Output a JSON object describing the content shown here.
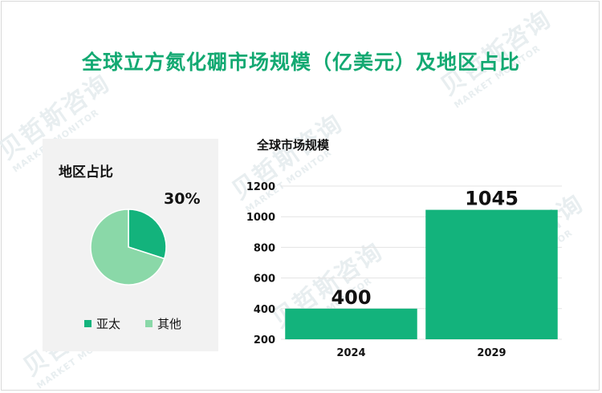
{
  "title": "全球立方氮化硼市场规模（亿美元）及地区占比",
  "watermark": {
    "cn": "贝哲斯咨询",
    "en": "MARKET MONITOR"
  },
  "colors": {
    "primary": "#13b37c",
    "secondary": "#8ad8a8",
    "title": "#13a972"
  },
  "chart_data": [
    {
      "type": "pie",
      "title": "地区占比",
      "slices": [
        {
          "label": "亚太",
          "value": 30,
          "color": "#13b37c"
        },
        {
          "label": "其他",
          "value": 70,
          "color": "#8ad8a8"
        }
      ],
      "data_label": "30%",
      "legend_position": "bottom"
    },
    {
      "type": "bar",
      "title": "全球市场规模",
      "categories": [
        "2024",
        "2029"
      ],
      "values": [
        400,
        1045
      ],
      "value_labels": [
        "400",
        "1045"
      ],
      "ylim": [
        200,
        1200
      ],
      "yticks": [
        "200",
        "400",
        "600",
        "800",
        "1000",
        "1200"
      ],
      "grid": true,
      "color": "#13b37c"
    }
  ]
}
